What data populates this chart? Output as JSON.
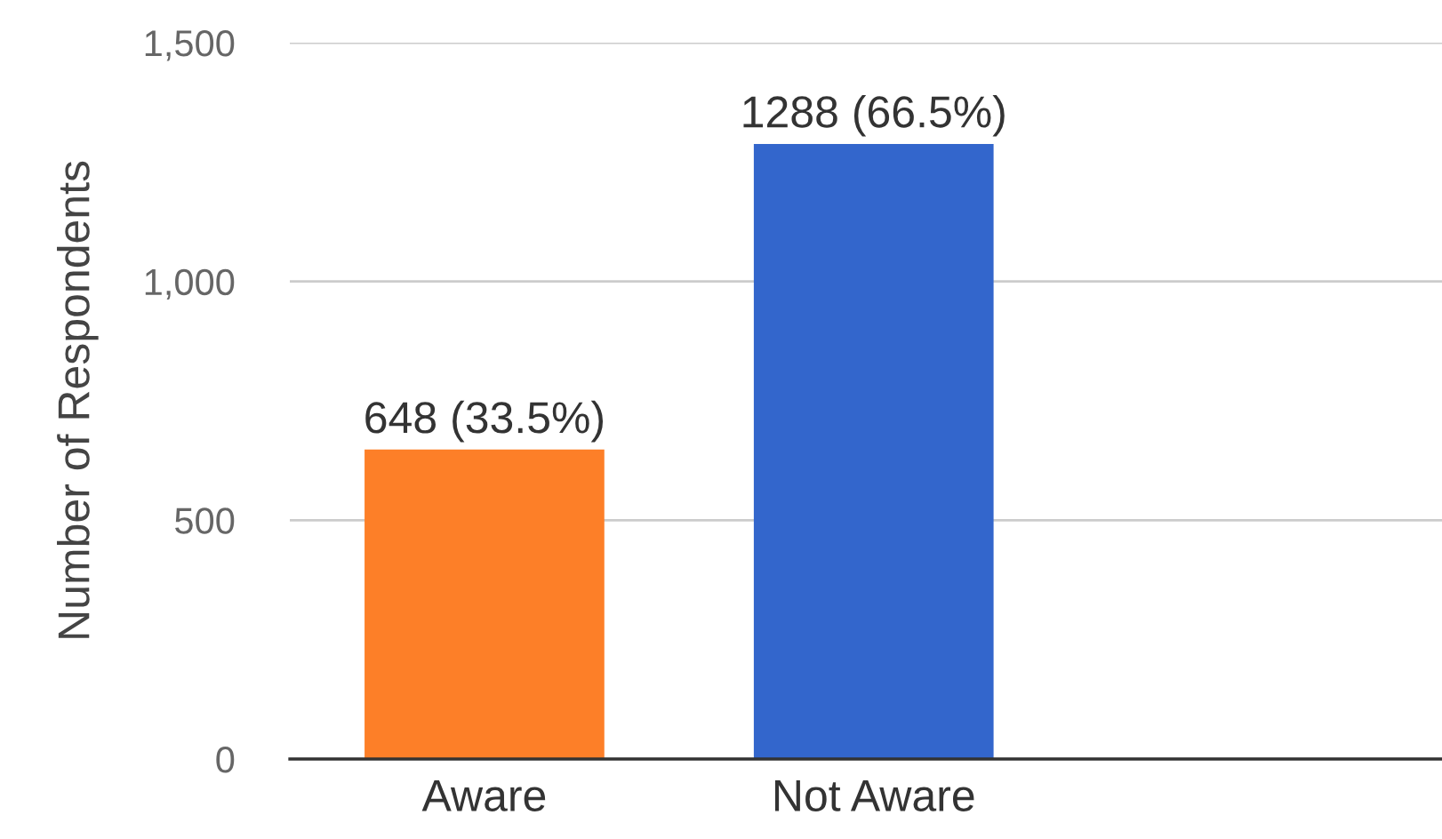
{
  "chart_data": {
    "type": "bar",
    "ylabel": "Number of Respondents",
    "categories": [
      "Aware",
      "Not Aware"
    ],
    "values": [
      648,
      1288
    ],
    "colors": [
      "#fd7f28",
      "#3366cc"
    ],
    "value_labels": [
      "648 (33.5%)",
      "1288 (66.5%)"
    ],
    "ylim": [
      0,
      1500
    ],
    "yticks": [
      0,
      500,
      {
        "value": 1000,
        "label": "1,000"
      },
      {
        "value": 1500,
        "label": "1,500"
      }
    ],
    "grid": "y"
  }
}
